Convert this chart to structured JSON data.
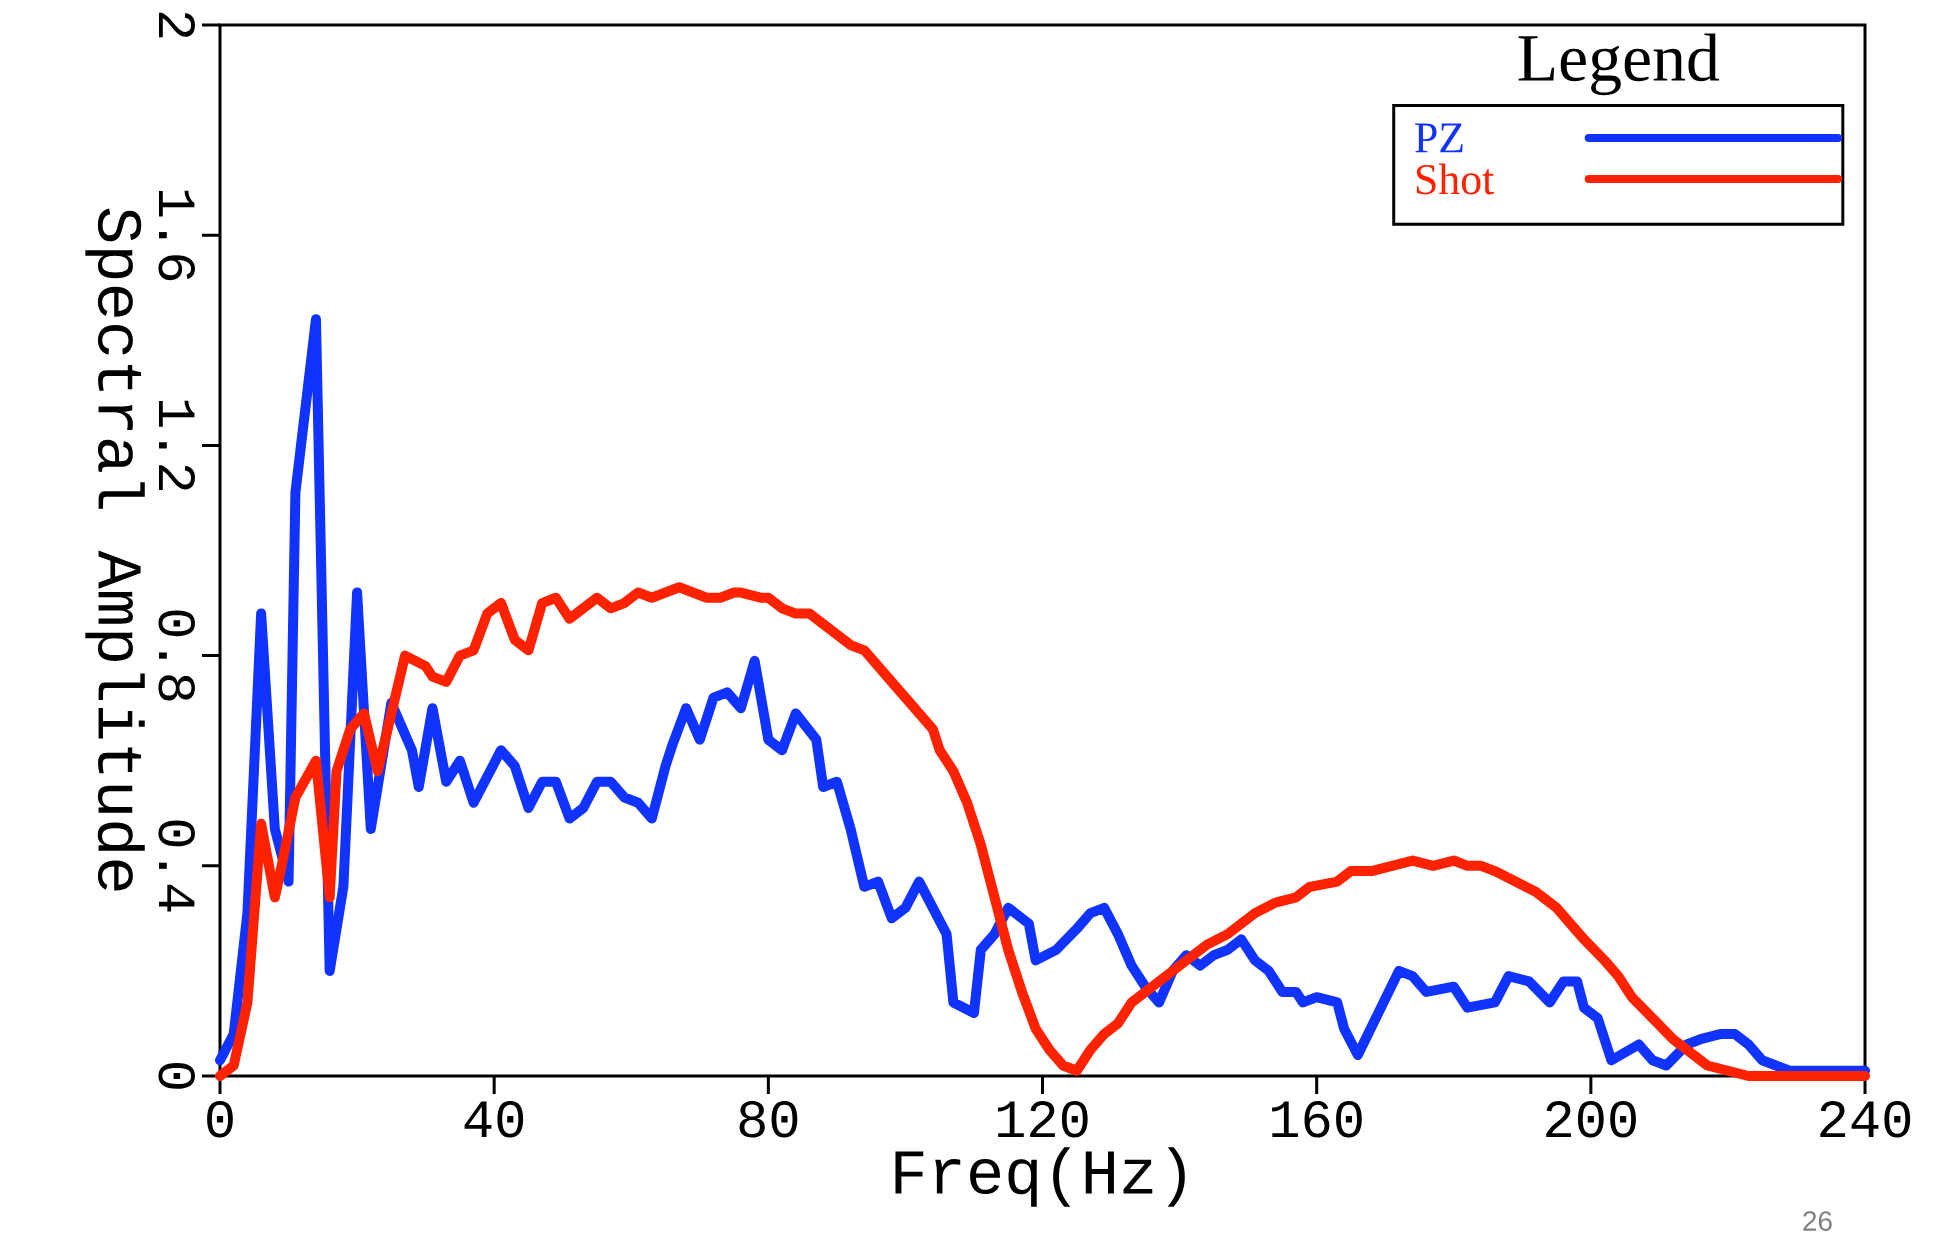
{
  "chart_data": {
    "type": "line",
    "xlabel": "Freq(Hz)",
    "ylabel": "Spectral Amplitude",
    "legend_title": "Legend",
    "legend": "top right",
    "line_style": "solid",
    "xlim": [
      0,
      240
    ],
    "xticks": [
      0,
      40,
      80,
      120,
      160,
      200,
      240
    ],
    "ylim": [
      0,
      2
    ],
    "yticks": [
      0,
      0.4,
      0.8,
      1.2,
      1.6,
      2
    ],
    "annotations": [
      "26"
    ],
    "series": [
      {
        "name": "PZ",
        "color": "#1133ff",
        "x": [
          0,
          2,
          4,
          6,
          8,
          10,
          11,
          14,
          16,
          18,
          20,
          22,
          25,
          28,
          29,
          31,
          33,
          35,
          37,
          41,
          43,
          45,
          47,
          49,
          51,
          53,
          55,
          57,
          59,
          61,
          63,
          65,
          66,
          68,
          70,
          72,
          74,
          76,
          78,
          80,
          82,
          84,
          87,
          88,
          90,
          92,
          94,
          96,
          98,
          100,
          102,
          104,
          106,
          107,
          110,
          111,
          113,
          115,
          118,
          119,
          122,
          125,
          127,
          129,
          131,
          133,
          135,
          137,
          139,
          141,
          143,
          145,
          147,
          149,
          151,
          153,
          155,
          157,
          158,
          160,
          163,
          164,
          166,
          169,
          172,
          174,
          176,
          180,
          182,
          186,
          188,
          191,
          194,
          196,
          198,
          199,
          201,
          203,
          207,
          209,
          211,
          214,
          216,
          219,
          221,
          223,
          225,
          227,
          229,
          231,
          240
        ],
        "values": [
          0.03,
          0.08,
          0.31,
          0.88,
          0.47,
          0.37,
          1.11,
          1.44,
          0.2,
          0.36,
          0.92,
          0.47,
          0.71,
          0.62,
          0.55,
          0.7,
          0.56,
          0.6,
          0.52,
          0.62,
          0.59,
          0.51,
          0.56,
          0.56,
          0.49,
          0.51,
          0.56,
          0.56,
          0.53,
          0.52,
          0.49,
          0.59,
          0.63,
          0.7,
          0.64,
          0.72,
          0.73,
          0.7,
          0.79,
          0.64,
          0.62,
          0.69,
          0.64,
          0.55,
          0.56,
          0.47,
          0.36,
          0.37,
          0.3,
          0.32,
          0.37,
          0.32,
          0.27,
          0.14,
          0.12,
          0.24,
          0.27,
          0.32,
          0.29,
          0.22,
          0.24,
          0.28,
          0.31,
          0.32,
          0.27,
          0.21,
          0.17,
          0.14,
          0.2,
          0.23,
          0.21,
          0.23,
          0.24,
          0.26,
          0.22,
          0.2,
          0.16,
          0.16,
          0.14,
          0.15,
          0.14,
          0.09,
          0.04,
          0.12,
          0.2,
          0.19,
          0.16,
          0.17,
          0.13,
          0.14,
          0.19,
          0.18,
          0.14,
          0.18,
          0.18,
          0.13,
          0.11,
          0.03,
          0.06,
          0.03,
          0.02,
          0.06,
          0.07,
          0.08,
          0.08,
          0.06,
          0.03,
          0.02,
          0.01,
          0.01,
          0.01
        ]
      },
      {
        "name": "Shot",
        "color": "#ff2200",
        "x": [
          0,
          2,
          4,
          6,
          8,
          9,
          11,
          14,
          16,
          17,
          19,
          21,
          23,
          25,
          27,
          30,
          31,
          33,
          35,
          37,
          39,
          41,
          43,
          45,
          47,
          49,
          51,
          53,
          55,
          57,
          59,
          61,
          63,
          65,
          67,
          69,
          71,
          73,
          75,
          76,
          79,
          80,
          82,
          84,
          86,
          88,
          90,
          92,
          94,
          96,
          98,
          100,
          102,
          104,
          105,
          107,
          109,
          111,
          113,
          115,
          117,
          119,
          121,
          123,
          125,
          127,
          129,
          131,
          133,
          135,
          138,
          140,
          142,
          144,
          147,
          149,
          151,
          154,
          157,
          159,
          163,
          165,
          168,
          171,
          174,
          177,
          180,
          182,
          184,
          186,
          189,
          192,
          195,
          197,
          199,
          202,
          204,
          206,
          209,
          212,
          215,
          217,
          220,
          223,
          240
        ],
        "values": [
          0,
          0.02,
          0.14,
          0.48,
          0.34,
          0.4,
          0.53,
          0.6,
          0.34,
          0.58,
          0.66,
          0.69,
          0.58,
          0.69,
          0.8,
          0.78,
          0.76,
          0.75,
          0.8,
          0.81,
          0.88,
          0.9,
          0.83,
          0.81,
          0.9,
          0.91,
          0.87,
          0.89,
          0.91,
          0.89,
          0.9,
          0.92,
          0.91,
          0.92,
          0.93,
          0.92,
          0.91,
          0.91,
          0.92,
          0.92,
          0.91,
          0.91,
          0.89,
          0.88,
          0.88,
          0.86,
          0.84,
          0.82,
          0.81,
          0.78,
          0.75,
          0.72,
          0.69,
          0.66,
          0.62,
          0.58,
          0.52,
          0.44,
          0.34,
          0.24,
          0.16,
          0.09,
          0.05,
          0.02,
          0.01,
          0.05,
          0.08,
          0.1,
          0.14,
          0.16,
          0.19,
          0.21,
          0.23,
          0.25,
          0.27,
          0.29,
          0.31,
          0.33,
          0.34,
          0.36,
          0.37,
          0.39,
          0.39,
          0.4,
          0.41,
          0.4,
          0.41,
          0.4,
          0.4,
          0.39,
          0.37,
          0.35,
          0.32,
          0.29,
          0.26,
          0.22,
          0.19,
          0.15,
          0.11,
          0.07,
          0.04,
          0.02,
          0.01,
          0,
          0
        ]
      }
    ]
  }
}
